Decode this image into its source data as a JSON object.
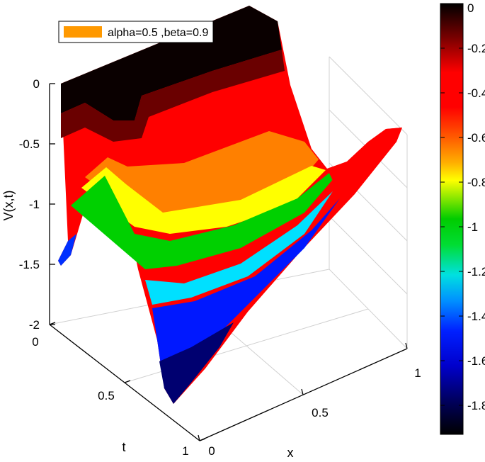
{
  "chart_data": {
    "type": "surface",
    "legend": {
      "label": "alpha=0.5 ,beta=0.9",
      "color": "#ff9900",
      "placement": "top-left"
    },
    "axes": {
      "zlabel": "V(x,t)",
      "xlabel": "x",
      "ylabel": "t",
      "xlim": [
        0,
        1
      ],
      "tlim": [
        0,
        1
      ],
      "zlim": [
        -2,
        0
      ],
      "x_ticks": [
        "0",
        "0.5",
        "1"
      ],
      "t_ticks": [
        "0",
        "0.5",
        "1"
      ],
      "z_ticks": [
        "0",
        "-0.5",
        "-1",
        "-1.5",
        "-2"
      ],
      "grid": true
    },
    "colorbar": {
      "ticks": [
        "0",
        "-0.2",
        "-0.4",
        "-0.6",
        "-0.8",
        "-1",
        "-1.2",
        "-1.4",
        "-1.6",
        "-1.8"
      ],
      "range": [
        -1.93,
        0
      ],
      "colormap": "jet-reversed-with-black-ends"
    },
    "surface_profile": {
      "x": [
        0,
        0.05,
        0.1,
        0.15,
        0.2,
        0.25,
        0.3,
        0.35,
        0.4,
        0.45,
        0.5,
        0.55,
        0.6,
        0.65,
        0.7,
        0.75,
        0.8,
        0.85,
        0.9,
        0.95,
        1.0
      ],
      "v_at_t0": [
        -1.5,
        -0.95,
        -0.65,
        -0.55,
        -0.35,
        -0.15,
        -0.04,
        -0.01,
        0,
        0,
        0,
        0,
        0,
        -0.05,
        -0.3,
        -0.55,
        -0.7,
        -0.72,
        -0.6,
        -0.45,
        -0.35
      ],
      "v_at_t1": [
        -0.25,
        -0.28,
        -0.4,
        -0.65,
        -1.0,
        -1.4,
        -1.75,
        -1.93,
        -1.8,
        -1.55,
        -1.25,
        -1.0,
        -0.75,
        -0.55,
        -0.4,
        -0.3,
        -0.25,
        -0.26,
        -0.3,
        -0.34,
        -0.35
      ]
    }
  }
}
